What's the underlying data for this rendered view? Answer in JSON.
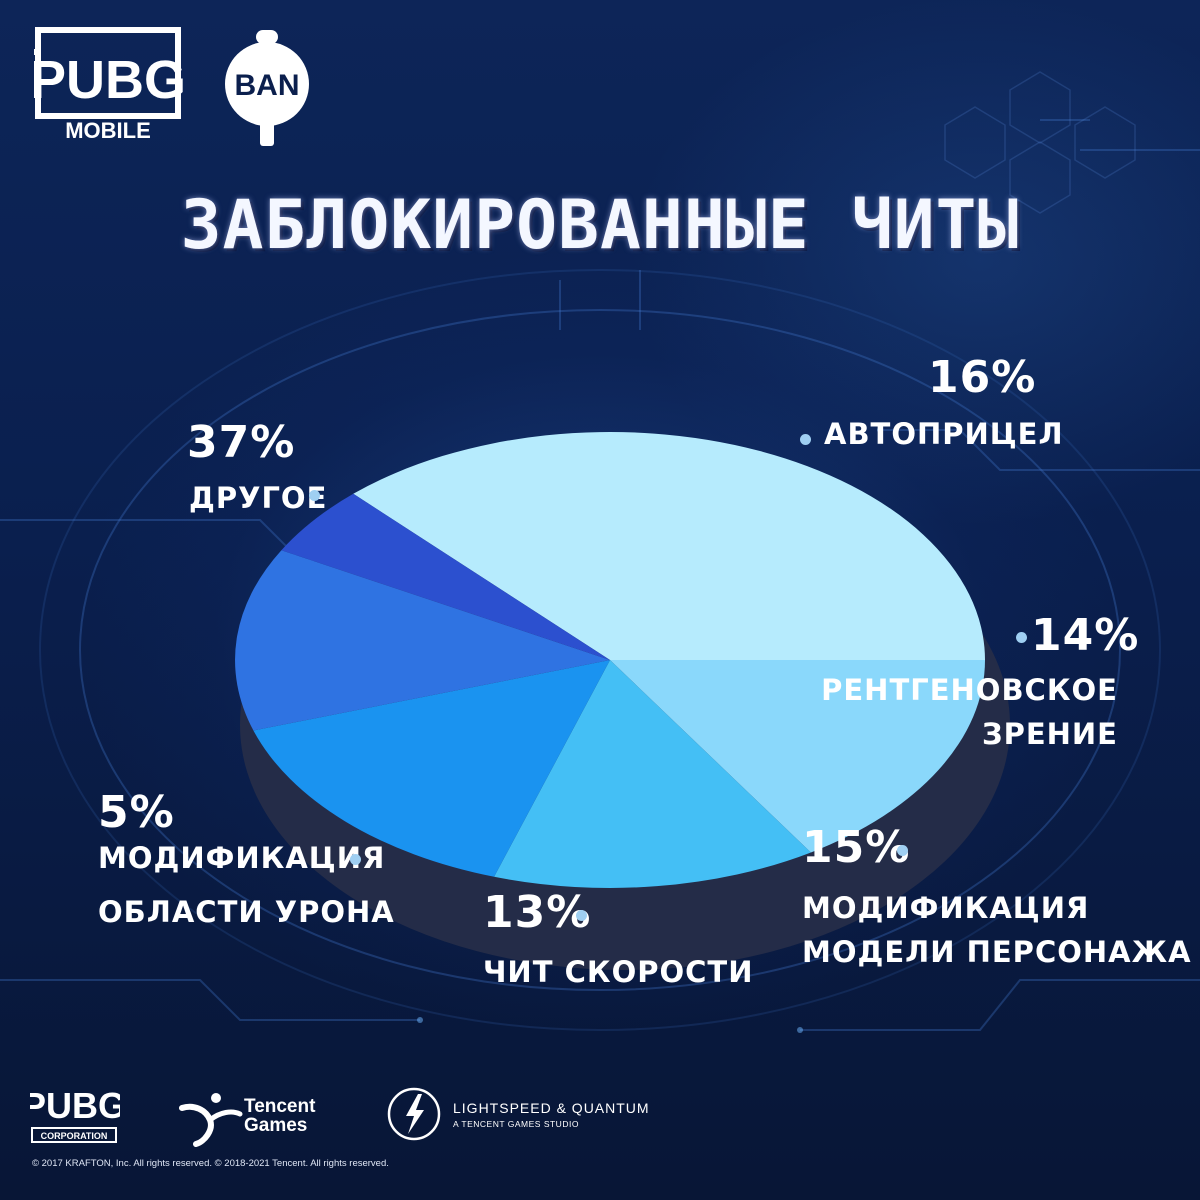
{
  "logos": {
    "pubg_mobile_word": "PUBG",
    "pubg_mobile_sub": "MOBILE",
    "ban_label": "BAN",
    "pubg_corp_word": "PUBG",
    "pubg_corp_sub": "CORPORATION",
    "tencent_line1": "Tencent",
    "tencent_line2": "Games",
    "lightspeed_title": "LIGHTSPEED & QUANTUM",
    "lightspeed_sub": "A TENCENT GAMES STUDIO"
  },
  "footer": {
    "copyright": "© 2017 KRAFTON, Inc. All rights reserved.    © 2018-2021 Tencent. All rights reserved."
  },
  "chart_data": {
    "type": "pie",
    "title": "ЗАБЛОКИРОВАННЫЕ ЧИТЫ",
    "categories": [
      "ДРУГОЕ",
      "АВТОПРИЦЕЛ",
      "РЕНТГЕНОВСКОЕ ЗРЕНИЕ",
      "МОДИФИКАЦИЯ МОДЕЛИ ПЕРСОНАЖА",
      "ЧИТ СКОРОСТИ",
      "МОДИФИКАЦИЯ ОБЛАСТИ УРОНА"
    ],
    "category_lines": [
      [
        "ДРУГОЕ"
      ],
      [
        "АВТОПРИЦЕЛ"
      ],
      [
        "РЕНТГЕНОВСКОЕ",
        "ЗРЕНИЕ"
      ],
      [
        "МОДИФИКАЦИЯ",
        "МОДЕЛИ ПЕРСОНАЖА"
      ],
      [
        "ЧИТ СКОРОСТИ"
      ],
      [
        "МОДИФИКАЦИЯ",
        "ОБЛАСТИ УРОНА"
      ]
    ],
    "values": [
      37,
      16,
      14,
      15,
      13,
      5
    ],
    "labels": [
      "37%",
      "16%",
      "14%",
      "15%",
      "13%",
      "5%"
    ],
    "colors": [
      "#b6ebfd",
      "#8ad8fb",
      "#44bff5",
      "#1a93f0",
      "#2f73e2",
      "#2c50cf"
    ]
  }
}
